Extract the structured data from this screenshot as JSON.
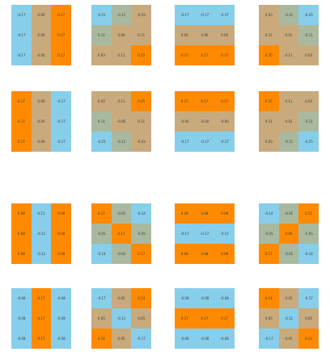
{
  "palette": {
    "O": "#ff8a00",
    "B": "#87ceeb",
    "T": "#c9aa7c",
    "G": "#a9b9a0"
  },
  "grids": [
    {
      "cells": [
        {
          "v": "-0.17",
          "c": "B"
        },
        {
          "v": "0.00",
          "c": "T"
        },
        {
          "v": "0.17",
          "c": "O"
        },
        {
          "v": "-0.17",
          "c": "B"
        },
        {
          "v": "0.00",
          "c": "T"
        },
        {
          "v": "0.17",
          "c": "O"
        },
        {
          "v": "-0.17",
          "c": "B"
        },
        {
          "v": "0.00",
          "c": "T"
        },
        {
          "v": "0.17",
          "c": "O"
        }
      ]
    },
    {
      "cells": [
        {
          "v": "-0.25",
          "c": "B"
        },
        {
          "v": "-0.11",
          "c": "G"
        },
        {
          "v": "-0.03",
          "c": "T"
        },
        {
          "v": "0.11",
          "c": "G"
        },
        {
          "v": "0.06",
          "c": "T"
        },
        {
          "v": "0.11",
          "c": "T"
        },
        {
          "v": "0.03",
          "c": "T"
        },
        {
          "v": "0.11",
          "c": "T"
        },
        {
          "v": "0.25",
          "c": "O"
        }
      ]
    },
    {
      "cells": [
        {
          "v": "-0.17",
          "c": "B"
        },
        {
          "v": "-0.17",
          "c": "B"
        },
        {
          "v": "-0.17",
          "c": "B"
        },
        {
          "v": "0.00",
          "c": "T"
        },
        {
          "v": "0.00",
          "c": "T"
        },
        {
          "v": "0.00",
          "c": "T"
        },
        {
          "v": "0.17",
          "c": "O"
        },
        {
          "v": "0.17",
          "c": "O"
        },
        {
          "v": "0.17",
          "c": "O"
        }
      ]
    },
    {
      "cells": [
        {
          "v": "0.03",
          "c": "T"
        },
        {
          "v": "-0.11",
          "c": "G"
        },
        {
          "v": "-0.25",
          "c": "B"
        },
        {
          "v": "0.11",
          "c": "T"
        },
        {
          "v": "0.01",
          "c": "T"
        },
        {
          "v": "-0.11",
          "c": "G"
        },
        {
          "v": "0.25",
          "c": "O"
        },
        {
          "v": "0.11",
          "c": "T"
        },
        {
          "v": "0.03",
          "c": "T"
        }
      ]
    },
    {
      "cells": [
        {
          "v": "0.17",
          "c": "O"
        },
        {
          "v": "0.00",
          "c": "T"
        },
        {
          "v": "-0.17",
          "c": "B"
        },
        {
          "v": "0.17",
          "c": "O"
        },
        {
          "v": "0.00",
          "c": "T"
        },
        {
          "v": "-0.17",
          "c": "B"
        },
        {
          "v": "0.17",
          "c": "O"
        },
        {
          "v": "0.00",
          "c": "T"
        },
        {
          "v": "-0.17",
          "c": "B"
        }
      ]
    },
    {
      "cells": [
        {
          "v": "0.03",
          "c": "T"
        },
        {
          "v": "0.11",
          "c": "T"
        },
        {
          "v": "0.25",
          "c": "O"
        },
        {
          "v": "0.11",
          "c": "G"
        },
        {
          "v": "-0.06",
          "c": "T"
        },
        {
          "v": "0.11",
          "c": "T"
        },
        {
          "v": "-0.25",
          "c": "B"
        },
        {
          "v": "-0.11",
          "c": "G"
        },
        {
          "v": "-0.03",
          "c": "T"
        }
      ]
    },
    {
      "cells": [
        {
          "v": "0.17",
          "c": "O"
        },
        {
          "v": "0.17",
          "c": "O"
        },
        {
          "v": "0.17",
          "c": "O"
        },
        {
          "v": "-0.00",
          "c": "T"
        },
        {
          "v": "-0.00",
          "c": "T"
        },
        {
          "v": "-0.00",
          "c": "T"
        },
        {
          "v": "-0.17",
          "c": "B"
        },
        {
          "v": "-0.17",
          "c": "B"
        },
        {
          "v": "-0.17",
          "c": "B"
        }
      ]
    },
    {
      "cells": [
        {
          "v": "0.25",
          "c": "O"
        },
        {
          "v": "0.11",
          "c": "T"
        },
        {
          "v": "0.03",
          "c": "T"
        },
        {
          "v": "0.11",
          "c": "T"
        },
        {
          "v": "0.03",
          "c": "T"
        },
        {
          "v": "-0.11",
          "c": "G"
        },
        {
          "v": "0.03",
          "c": "T"
        },
        {
          "v": "-0.11",
          "c": "G"
        },
        {
          "v": "-0.25",
          "c": "B"
        }
      ]
    },
    {
      "cells": [
        {
          "v": "0.08",
          "c": "O"
        },
        {
          "v": "0.11",
          "c": "B"
        },
        {
          "v": "0.08",
          "c": "O"
        },
        {
          "v": "0.08",
          "c": "O"
        },
        {
          "v": "-0.11",
          "c": "B"
        },
        {
          "v": "0.08",
          "c": "O"
        },
        {
          "v": "0.08",
          "c": "O"
        },
        {
          "v": "-0.11",
          "c": "B"
        },
        {
          "v": "0.08",
          "c": "O"
        }
      ]
    },
    {
      "cells": [
        {
          "v": "0.17",
          "c": "O"
        },
        {
          "v": "-0.05",
          "c": "G"
        },
        {
          "v": "-0.14",
          "c": "B"
        },
        {
          "v": "-0.05",
          "c": "G"
        },
        {
          "v": "0.17",
          "c": "O"
        },
        {
          "v": "-0.05",
          "c": "G"
        },
        {
          "v": "-0.14",
          "c": "B"
        },
        {
          "v": "-0.05",
          "c": "G"
        },
        {
          "v": "0.17",
          "c": "O"
        }
      ]
    },
    {
      "cells": [
        {
          "v": "0.08",
          "c": "O"
        },
        {
          "v": "0.08",
          "c": "O"
        },
        {
          "v": "0.08",
          "c": "O"
        },
        {
          "v": "-0.17",
          "c": "B"
        },
        {
          "v": "-0.17",
          "c": "B"
        },
        {
          "v": "-0.17",
          "c": "B"
        },
        {
          "v": "0.08",
          "c": "O"
        },
        {
          "v": "0.08",
          "c": "O"
        },
        {
          "v": "0.08",
          "c": "O"
        }
      ]
    },
    {
      "cells": [
        {
          "v": "-0.14",
          "c": "B"
        },
        {
          "v": "-0.05",
          "c": "G"
        },
        {
          "v": "0.11",
          "c": "O"
        },
        {
          "v": "-0.05",
          "c": "G"
        },
        {
          "v": "0.06",
          "c": "O"
        },
        {
          "v": "-0.05",
          "c": "G"
        },
        {
          "v": "0.17",
          "c": "O"
        },
        {
          "v": "-0.05",
          "c": "G"
        },
        {
          "v": "-0.14",
          "c": "B"
        }
      ]
    },
    {
      "cells": [
        {
          "v": "-0.08",
          "c": "B"
        },
        {
          "v": "0.17",
          "c": "O"
        },
        {
          "v": "-0.08",
          "c": "B"
        },
        {
          "v": "-0.08",
          "c": "B"
        },
        {
          "v": "0.17",
          "c": "O"
        },
        {
          "v": "-0.08",
          "c": "B"
        },
        {
          "v": "-0.08",
          "c": "B"
        },
        {
          "v": "0.17",
          "c": "O"
        },
        {
          "v": "-0.08",
          "c": "B"
        }
      ]
    },
    {
      "cells": [
        {
          "v": "-0.17",
          "c": "B"
        },
        {
          "v": "0.05",
          "c": "T"
        },
        {
          "v": "0.14",
          "c": "O"
        },
        {
          "v": "0.05",
          "c": "T"
        },
        {
          "v": "-0.11",
          "c": "B"
        },
        {
          "v": "0.05",
          "c": "T"
        },
        {
          "v": "0.14",
          "c": "O"
        },
        {
          "v": "0.05",
          "c": "T"
        },
        {
          "v": "-0.17",
          "c": "B"
        }
      ]
    },
    {
      "cells": [
        {
          "v": "-0.08",
          "c": "B"
        },
        {
          "v": "-0.08",
          "c": "B"
        },
        {
          "v": "-0.08",
          "c": "B"
        },
        {
          "v": "0.17",
          "c": "O"
        },
        {
          "v": "0.17",
          "c": "O"
        },
        {
          "v": "0.17",
          "c": "O"
        },
        {
          "v": "-0.08",
          "c": "B"
        },
        {
          "v": "-0.08",
          "c": "B"
        },
        {
          "v": "-0.08",
          "c": "B"
        }
      ]
    },
    {
      "cells": [
        {
          "v": "0.14",
          "c": "O"
        },
        {
          "v": "0.05",
          "c": "T"
        },
        {
          "v": "-0.17",
          "c": "B"
        },
        {
          "v": "0.05",
          "c": "T"
        },
        {
          "v": "-0.11",
          "c": "B"
        },
        {
          "v": "0.05",
          "c": "T"
        },
        {
          "v": "-0.17",
          "c": "B"
        },
        {
          "v": "0.05",
          "c": "T"
        },
        {
          "v": "0.14",
          "c": "O"
        }
      ]
    }
  ]
}
